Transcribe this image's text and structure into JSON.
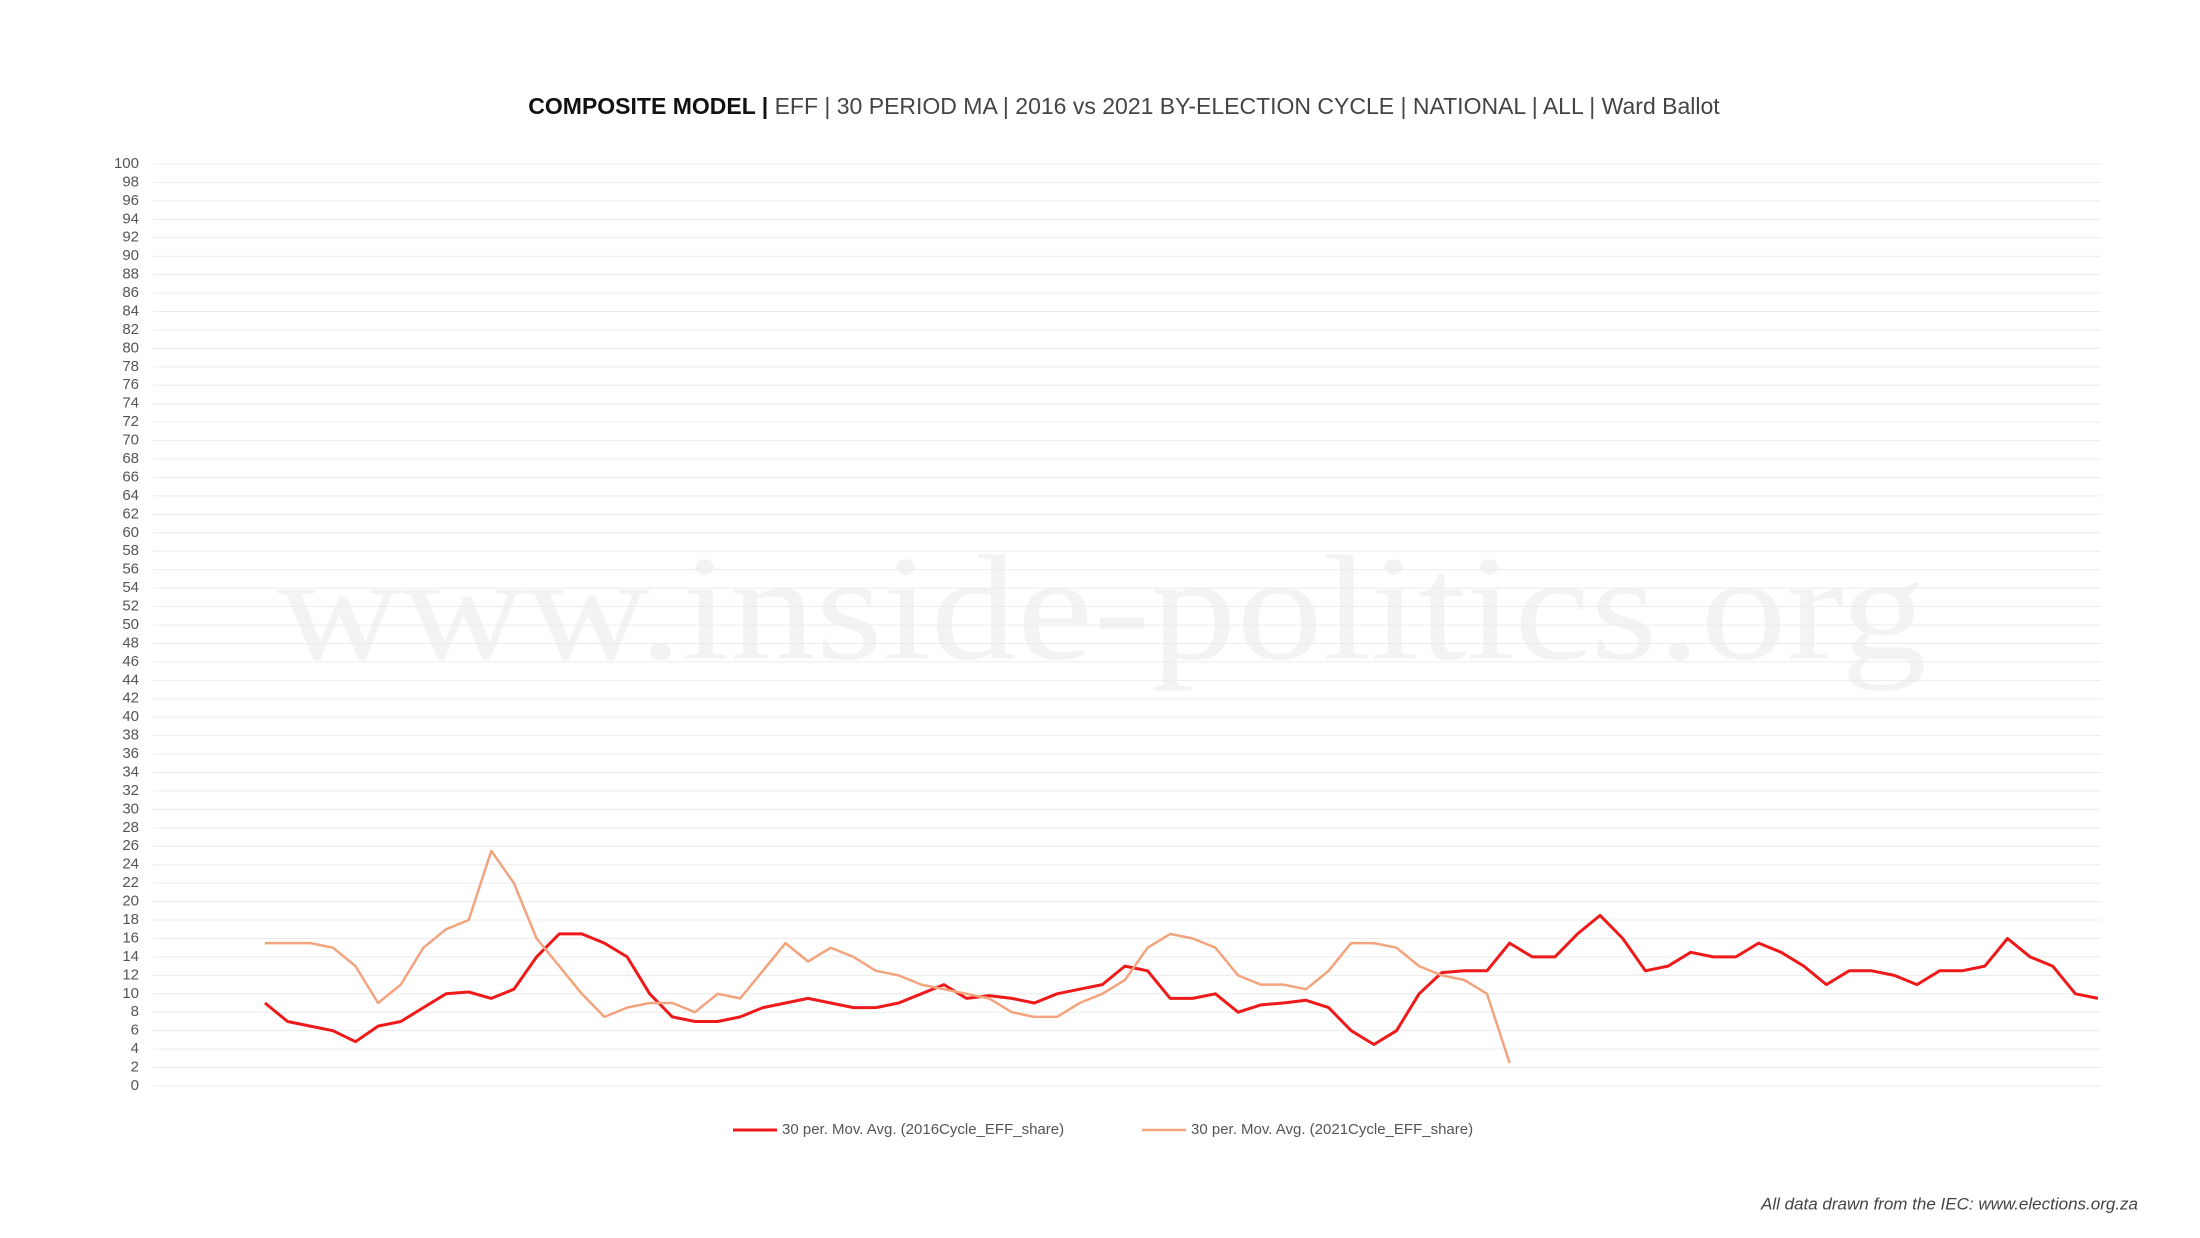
{
  "chart_data": {
    "type": "line",
    "title": [
      "COMPOSITE MODEL |",
      "EFF | 30 PERIOD MA | 2016 vs 2021 BY-ELECTION CYCLE | NATIONAL | ALL | Ward Ballot"
    ],
    "watermark": "www.inside-politics.org",
    "footer": "All data drawn from the IEC: www.elections.org.za",
    "ylim": [
      0,
      100
    ],
    "yticks": [
      0,
      2,
      4,
      6,
      8,
      10,
      12,
      14,
      16,
      18,
      20,
      22,
      24,
      26,
      28,
      30,
      32,
      34,
      36,
      38,
      40,
      42,
      44,
      46,
      48,
      50,
      52,
      54,
      56,
      58,
      60,
      62,
      64,
      66,
      68,
      70,
      72,
      74,
      76,
      78,
      80,
      82,
      84,
      86,
      88,
      90,
      92,
      94,
      96,
      98,
      100
    ],
    "grid": true,
    "legend": "bottom",
    "series": [
      {
        "name": "30 per. Mov. Avg. (2016Cycle_EFF_share)",
        "color": "#ee1a1a",
        "values": [
          9,
          7,
          6.5,
          6,
          4.8,
          6.5,
          7,
          8.5,
          10,
          10.2,
          9.5,
          10.5,
          14,
          16.5,
          16.5,
          15.5,
          14,
          10,
          7.5,
          7,
          7,
          7.5,
          8.5,
          9,
          9.5,
          9,
          8.5,
          8.5,
          9,
          10,
          11,
          9.5,
          9.8,
          9.5,
          9,
          10,
          10.5,
          11,
          13,
          12.5,
          9.5,
          9.5,
          10,
          8,
          8.8,
          9,
          9.3,
          8.5,
          6,
          4.5,
          6,
          10,
          12.3,
          12.5,
          12.5,
          15.5,
          14,
          14,
          16.5,
          18.5,
          16,
          12.5,
          13,
          14.5,
          14,
          14,
          15.5,
          14.5,
          13,
          11,
          12.5,
          12.5,
          12,
          11,
          12.5,
          12.5,
          13,
          16,
          14,
          13,
          10,
          9.5
        ]
      },
      {
        "name": "30 per. Mov. Avg. (2021Cycle_EFF_share)",
        "color": "#f2a47e",
        "values": [
          15.5,
          15.5,
          15.5,
          15,
          13,
          9,
          11,
          15,
          17,
          18,
          25.5,
          22,
          16,
          13,
          10,
          7.5,
          8.5,
          9,
          9,
          8,
          10,
          9.5,
          12.5,
          15.5,
          13.5,
          15,
          14,
          12.5,
          12,
          11,
          10.5,
          10,
          9.5,
          8,
          7.5,
          7.5,
          9,
          10,
          11.5,
          15,
          16.5,
          16,
          15,
          12,
          11,
          11,
          10.5,
          12.5,
          15.5,
          15.5,
          15,
          13,
          12,
          11.5,
          10,
          2.5,
          null,
          null,
          null,
          null,
          null,
          null,
          null,
          null,
          null,
          null,
          null,
          null,
          null,
          null,
          null,
          null,
          null,
          null,
          null,
          null,
          null,
          null,
          null,
          null,
          null,
          null
        ]
      }
    ]
  }
}
